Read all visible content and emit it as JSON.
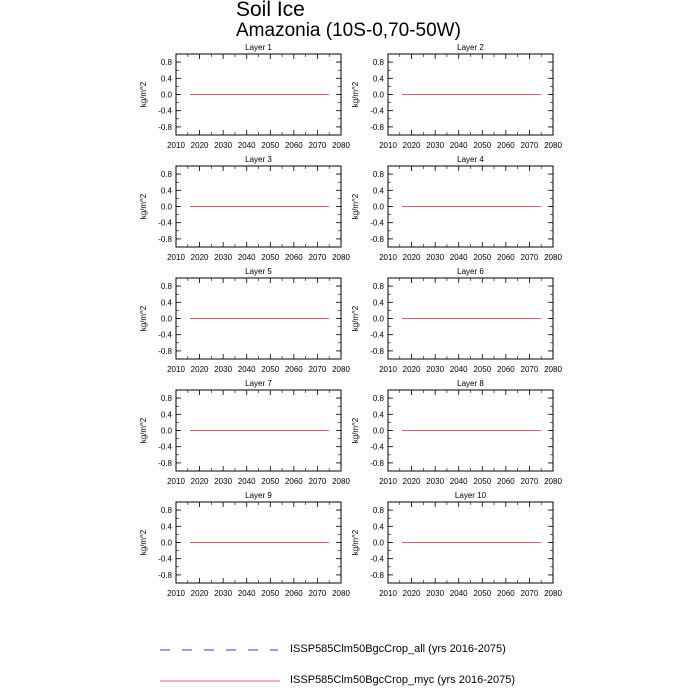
{
  "title": {
    "line1": "Soil Ice",
    "line2": "Amazonia (10S-0,70-50W)"
  },
  "chart_data": {
    "type": "line",
    "ylabel": "kg/m^2",
    "xlim": [
      2010,
      2080
    ],
    "ylim": [
      -1.0,
      1.0
    ],
    "xticks": [
      2010,
      2020,
      2030,
      2040,
      2050,
      2060,
      2070,
      2080
    ],
    "yticks": [
      0.8,
      0.4,
      0.0,
      -0.4,
      -0.8
    ],
    "ytick_labels": [
      "0.8",
      "0.4",
      "0.0",
      "-0.4",
      "-0.8"
    ],
    "panels": [
      {
        "title": "Layer 1"
      },
      {
        "title": "Layer 2"
      },
      {
        "title": "Layer 3"
      },
      {
        "title": "Layer 4"
      },
      {
        "title": "Layer 5"
      },
      {
        "title": "Layer 6"
      },
      {
        "title": "Layer 7"
      },
      {
        "title": "Layer 8"
      },
      {
        "title": "Layer 9"
      },
      {
        "title": "Layer 10"
      }
    ],
    "series": [
      {
        "name": "ISSP585Clm50BgcCrop_all (yrs 2016-2075)",
        "color": "#3b3bd9",
        "dash": true,
        "x": [
          2016,
          2075
        ],
        "y": [
          0.0,
          0.0
        ]
      },
      {
        "name": "ISSP585Clm50BgcCrop_myc (yrs 2016-2075)",
        "color": "#e8626d",
        "dash": false,
        "x": [
          2016,
          2075
        ],
        "y": [
          0.0,
          0.0
        ]
      }
    ]
  }
}
